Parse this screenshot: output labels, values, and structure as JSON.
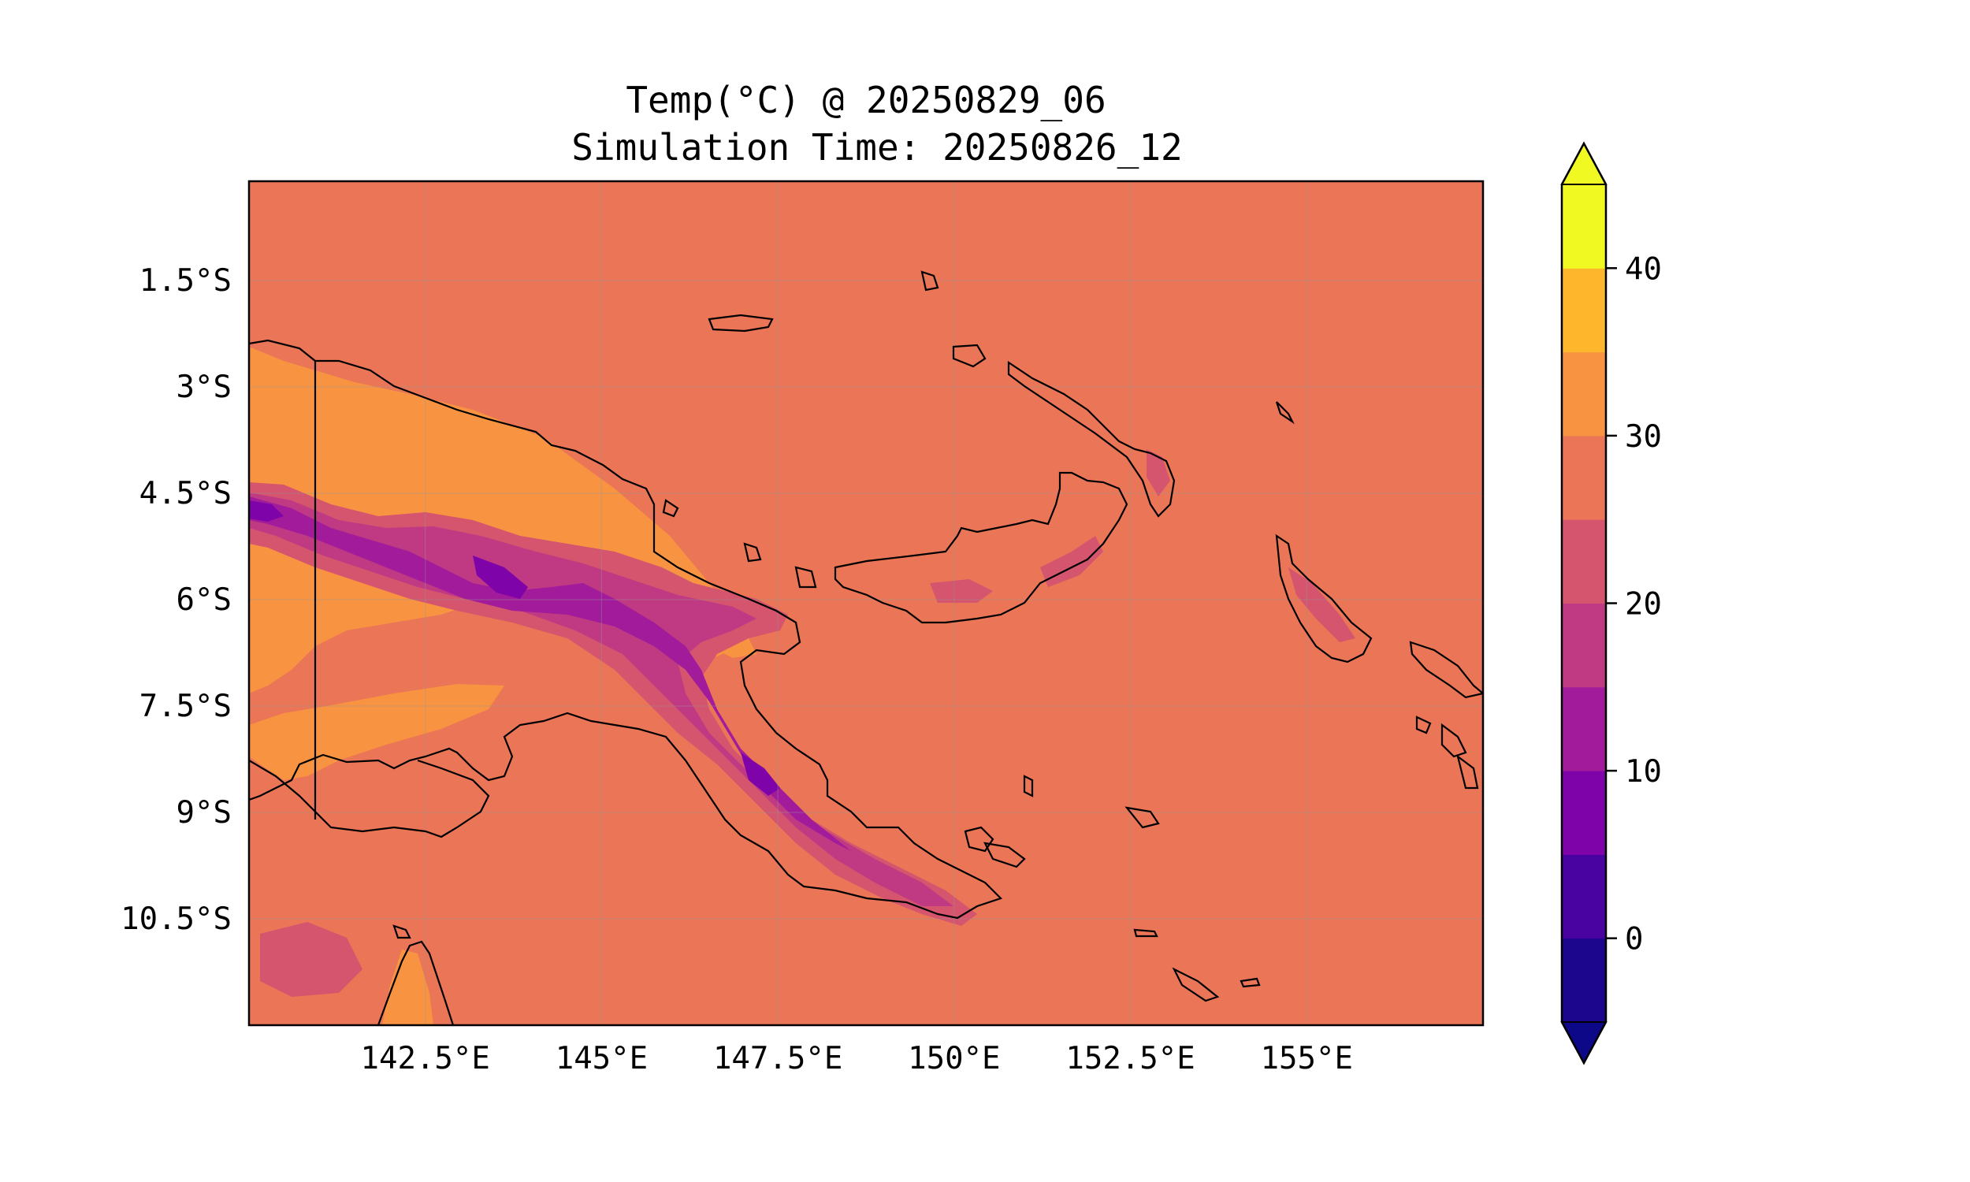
{
  "figure": {
    "title_line1": "Temp(°C) @ 20250829_06",
    "title_line2": "Simulation Time: 20250826_12"
  },
  "map": {
    "projection": "PlateCarree",
    "extent_lon": [
      140.0,
      157.5
    ],
    "extent_lat": [
      -12.0,
      -0.1
    ],
    "gridlines": true,
    "background_level_color": "#ea7557",
    "x_ticks": [
      {
        "value": 142.5,
        "label": "142.5°E"
      },
      {
        "value": 145,
        "label": "145°E"
      },
      {
        "value": 147.5,
        "label": "147.5°E"
      },
      {
        "value": 150,
        "label": "150°E"
      },
      {
        "value": 152.5,
        "label": "152.5°E"
      },
      {
        "value": 155,
        "label": "155°E"
      }
    ],
    "y_ticks": [
      {
        "value": -1.5,
        "label": "1.5°S"
      },
      {
        "value": -3,
        "label": "3°S"
      },
      {
        "value": -4.5,
        "label": "4.5°S"
      },
      {
        "value": -6,
        "label": "6°S"
      },
      {
        "value": -7.5,
        "label": "7.5°S"
      },
      {
        "value": -9,
        "label": "9°S"
      },
      {
        "value": -10.5,
        "label": "10.5°S"
      }
    ]
  },
  "colorbar": {
    "colormap": "plasma",
    "extend": "both",
    "vmin": -5,
    "vmax": 45,
    "level_step": 5,
    "level_colors": [
      "#1b068d",
      "#4903a0",
      "#7e03a8",
      "#a11b9b",
      "#c03a83",
      "#d5546e",
      "#ea7557",
      "#f89441",
      "#feb72d",
      "#f0f921"
    ],
    "under_color": "#0d0887",
    "over_color": "#f0f921",
    "ticks": [
      {
        "value": 0,
        "label": "0"
      },
      {
        "value": 10,
        "label": "10"
      },
      {
        "value": 20,
        "label": "20"
      },
      {
        "value": 30,
        "label": "30"
      },
      {
        "value": 40,
        "label": "40"
      }
    ]
  }
}
